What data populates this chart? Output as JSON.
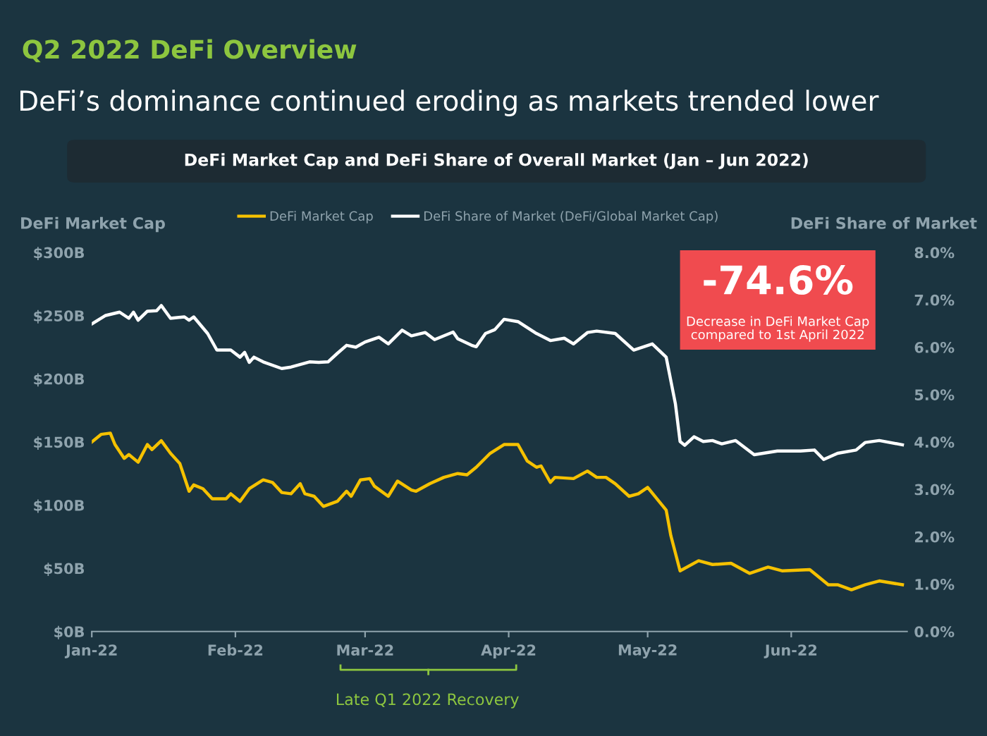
{
  "chart_data": {
    "type": "line",
    "title": "Q2 2022 DeFi Overview",
    "subtitle": "DeFi’s dominance continued eroding as markets trended lower",
    "ylabel": "DeFi Market Cap",
    "y2label": "DeFi Share of Market",
    "annotations": [
      "DeFi Market Cap and DeFi Share of Overall Market (Jan – Jun 2022)",
      "-74.6%",
      "Decrease in DeFi Market Cap\ncompared to 1st April 2022",
      "Late Q1 2022 Recovery"
    ],
    "xlim": [
      "2022-01-01",
      "2022-06-26"
    ],
    "xticks": [
      {
        "value": "2022-01-01",
        "label": "Jan-22"
      },
      {
        "value": "2022-02-01",
        "label": "Feb-22"
      },
      {
        "value": "2022-03-01",
        "label": "Mar-22"
      },
      {
        "value": "2022-04-01",
        "label": "Apr-22"
      },
      {
        "value": "2022-05-01",
        "label": "May-22"
      },
      {
        "value": "2022-06-01",
        "label": "Jun-22"
      }
    ],
    "ylim": [
      0,
      300
    ],
    "yticks": [
      {
        "value": 0,
        "label": "$0B"
      },
      {
        "value": 50,
        "label": "$50B"
      },
      {
        "value": 100,
        "label": "$100B"
      },
      {
        "value": 150,
        "label": "$150B"
      },
      {
        "value": 200,
        "label": "$200B"
      },
      {
        "value": 250,
        "label": "$250B"
      },
      {
        "value": 300,
        "label": "$300B"
      }
    ],
    "y2lim": [
      0,
      8
    ],
    "y2ticks": [
      {
        "value": 0,
        "label": "0.0%"
      },
      {
        "value": 1,
        "label": "1.0%"
      },
      {
        "value": 2,
        "label": "2.0%"
      },
      {
        "value": 3,
        "label": "3.0%"
      },
      {
        "value": 4,
        "label": "4.0%"
      },
      {
        "value": 5,
        "label": "5.0%"
      },
      {
        "value": 6,
        "label": "6.0%"
      },
      {
        "value": 7,
        "label": "7.0%"
      },
      {
        "value": 8,
        "label": "8.0%"
      }
    ],
    "grid": false,
    "legend": "top",
    "marker": "none",
    "line_style": "solid",
    "series": [
      {
        "name": "DeFi Market Cap",
        "color": "#f5c100",
        "x": [
          "2022-01-01",
          "2022-01-03",
          "2022-01-05",
          "2022-01-06",
          "2022-01-08",
          "2022-01-09",
          "2022-01-11",
          "2022-01-13",
          "2022-01-14",
          "2022-01-16",
          "2022-01-18",
          "2022-01-20",
          "2022-01-22",
          "2022-01-23",
          "2022-01-25",
          "2022-01-27",
          "2022-01-30",
          "2022-01-31",
          "2022-02-02",
          "2022-02-04",
          "2022-02-07",
          "2022-02-09",
          "2022-02-11",
          "2022-02-13",
          "2022-02-15",
          "2022-02-16",
          "2022-02-18",
          "2022-02-20",
          "2022-02-23",
          "2022-02-25",
          "2022-02-26",
          "2022-02-28",
          "2022-03-02",
          "2022-03-03",
          "2022-03-06",
          "2022-03-08",
          "2022-03-11",
          "2022-03-12",
          "2022-03-15",
          "2022-03-18",
          "2022-03-21",
          "2022-03-23",
          "2022-03-25",
          "2022-03-28",
          "2022-03-31",
          "2022-04-03",
          "2022-04-05",
          "2022-04-07",
          "2022-04-08",
          "2022-04-10",
          "2022-04-11",
          "2022-04-15",
          "2022-04-18",
          "2022-04-20",
          "2022-04-22",
          "2022-04-24",
          "2022-04-27",
          "2022-04-29",
          "2022-05-01",
          "2022-05-05",
          "2022-05-06",
          "2022-05-08",
          "2022-05-12",
          "2022-05-15",
          "2022-05-19",
          "2022-05-23",
          "2022-05-27",
          "2022-05-30",
          "2022-06-05",
          "2022-06-09",
          "2022-06-11",
          "2022-06-14",
          "2022-06-17",
          "2022-06-20",
          "2022-06-25"
        ],
        "values": [
          150,
          156,
          157,
          148,
          137,
          140,
          134,
          148,
          144,
          151,
          141,
          133,
          111,
          116,
          113,
          105,
          105,
          109,
          103,
          113,
          120,
          118,
          110,
          109,
          117,
          109,
          107,
          99,
          103,
          111,
          107,
          120,
          121,
          115,
          107,
          119,
          112,
          111,
          117,
          122,
          125,
          124,
          130,
          141,
          148,
          148,
          135,
          130,
          131,
          118,
          122,
          121,
          127,
          122,
          122,
          117,
          107,
          109,
          114,
          96,
          76,
          48,
          56,
          53,
          54,
          46,
          51,
          48,
          49,
          37,
          37,
          33,
          37,
          40,
          37
        ]
      },
      {
        "name": "DeFi Share of Market (DeFi/Global Market Cap)",
        "color": "#ffffff",
        "axis": "y2",
        "x": [
          "2022-01-01",
          "2022-01-04",
          "2022-01-07",
          "2022-01-09",
          "2022-01-10",
          "2022-01-11",
          "2022-01-13",
          "2022-01-15",
          "2022-01-16",
          "2022-01-18",
          "2022-01-21",
          "2022-01-22",
          "2022-01-23",
          "2022-01-26",
          "2022-01-28",
          "2022-01-31",
          "2022-02-02",
          "2022-02-03",
          "2022-02-04",
          "2022-02-05",
          "2022-02-07",
          "2022-02-11",
          "2022-02-13",
          "2022-02-17",
          "2022-02-19",
          "2022-02-21",
          "2022-02-23",
          "2022-02-25",
          "2022-02-27",
          "2022-03-01",
          "2022-03-04",
          "2022-03-06",
          "2022-03-09",
          "2022-03-11",
          "2022-03-14",
          "2022-03-16",
          "2022-03-20",
          "2022-03-21",
          "2022-03-24",
          "2022-03-25",
          "2022-03-27",
          "2022-03-29",
          "2022-03-31",
          "2022-04-03",
          "2022-04-07",
          "2022-04-10",
          "2022-04-13",
          "2022-04-15",
          "2022-04-18",
          "2022-04-20",
          "2022-04-24",
          "2022-04-28",
          "2022-05-02",
          "2022-05-05",
          "2022-05-07",
          "2022-05-08",
          "2022-05-09",
          "2022-05-11",
          "2022-05-13",
          "2022-05-15",
          "2022-05-17",
          "2022-05-20",
          "2022-05-24",
          "2022-05-29",
          "2022-06-03",
          "2022-06-06",
          "2022-06-08",
          "2022-06-11",
          "2022-06-15",
          "2022-06-17",
          "2022-06-20",
          "2022-06-25"
        ],
        "values": [
          6.49,
          6.67,
          6.74,
          6.61,
          6.74,
          6.57,
          6.76,
          6.77,
          6.88,
          6.61,
          6.64,
          6.57,
          6.64,
          6.29,
          5.94,
          5.94,
          5.79,
          5.89,
          5.68,
          5.79,
          5.69,
          5.55,
          5.58,
          5.69,
          5.68,
          5.69,
          5.87,
          6.04,
          6.0,
          6.11,
          6.21,
          6.07,
          6.36,
          6.24,
          6.31,
          6.16,
          6.32,
          6.18,
          6.04,
          6.01,
          6.29,
          6.37,
          6.59,
          6.54,
          6.29,
          6.14,
          6.19,
          6.07,
          6.31,
          6.34,
          6.29,
          5.94,
          6.07,
          5.79,
          4.8,
          4.01,
          3.93,
          4.11,
          4.01,
          4.03,
          3.96,
          4.03,
          3.73,
          3.81,
          3.81,
          3.83,
          3.63,
          3.76,
          3.83,
          3.99,
          4.03,
          3.94
        ]
      }
    ]
  }
}
